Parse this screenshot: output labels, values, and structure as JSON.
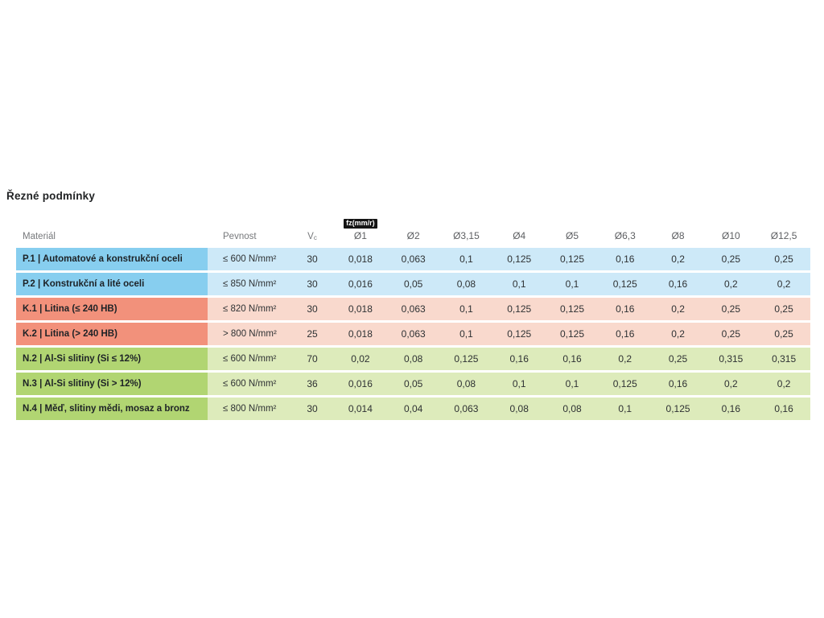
{
  "page": {
    "title": "Řezné podmínky"
  },
  "table": {
    "headers": {
      "material": "Materiál",
      "strength": "Pevnost",
      "vc_main": "V",
      "vc_sub": "c",
      "fz_badge": "fz(mm/r)",
      "diameters": [
        "Ø1",
        "Ø2",
        "Ø3,15",
        "Ø4",
        "Ø5",
        "Ø6,3",
        "Ø8",
        "Ø10",
        "Ø12,5"
      ]
    },
    "colors": {
      "P": {
        "label_bg": "#87CEEF",
        "row_bg": "#CDE9F8"
      },
      "K": {
        "label_bg": "#F2917B",
        "row_bg": "#F9D9CD"
      },
      "N": {
        "label_bg": "#B1D572",
        "row_bg": "#DDEBBB"
      }
    },
    "rows": [
      {
        "group": "P",
        "label": "P.1 | Automatové a konstrukční oceli",
        "strength": "≤ 600 N/mm²",
        "vc": "30",
        "fz": [
          "0,018",
          "0,063",
          "0,1",
          "0,125",
          "0,125",
          "0,16",
          "0,2",
          "0,25",
          "0,25"
        ]
      },
      {
        "group": "P",
        "label": "P.2 | Konstrukční a lité oceli",
        "strength": "≤ 850 N/mm²",
        "vc": "30",
        "fz": [
          "0,016",
          "0,05",
          "0,08",
          "0,1",
          "0,1",
          "0,125",
          "0,16",
          "0,2",
          "0,2"
        ]
      },
      {
        "group": "K",
        "label": "K.1 | Litina (≤ 240 HB)",
        "strength": "≤ 820 N/mm²",
        "vc": "30",
        "fz": [
          "0,018",
          "0,063",
          "0,1",
          "0,125",
          "0,125",
          "0,16",
          "0,2",
          "0,25",
          "0,25"
        ]
      },
      {
        "group": "K",
        "label": "K.2 | Litina (> 240 HB)",
        "strength": "> 800 N/mm²",
        "vc": "25",
        "fz": [
          "0,018",
          "0,063",
          "0,1",
          "0,125",
          "0,125",
          "0,16",
          "0,2",
          "0,25",
          "0,25"
        ]
      },
      {
        "group": "N",
        "label": "N.2 | Al-Si slitiny (Si ≤ 12%)",
        "strength": "≤ 600 N/mm²",
        "vc": "70",
        "fz": [
          "0,02",
          "0,08",
          "0,125",
          "0,16",
          "0,16",
          "0,2",
          "0,25",
          "0,315",
          "0,315"
        ]
      },
      {
        "group": "N",
        "label": "N.3 | Al-Si slitiny (Si > 12%)",
        "strength": "≤ 600 N/mm²",
        "vc": "36",
        "fz": [
          "0,016",
          "0,05",
          "0,08",
          "0,1",
          "0,1",
          "0,125",
          "0,16",
          "0,2",
          "0,2"
        ]
      },
      {
        "group": "N",
        "label": "N.4 | Měď, slitiny mědi, mosaz a bronz",
        "strength": "≤ 800 N/mm²",
        "vc": "30",
        "fz": [
          "0,014",
          "0,04",
          "0,063",
          "0,08",
          "0,08",
          "0,1",
          "0,125",
          "0,16",
          "0,16"
        ]
      }
    ]
  }
}
